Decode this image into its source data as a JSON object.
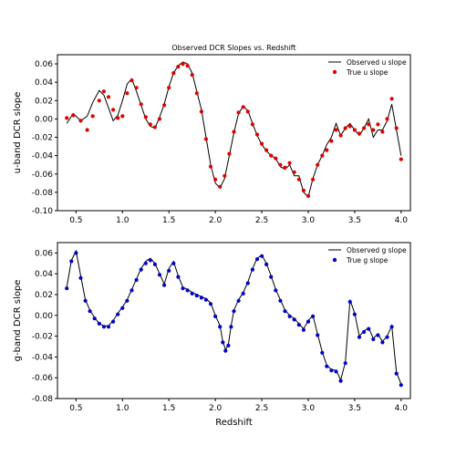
{
  "figure_title": "Observed DCR Slopes vs. Redshift",
  "colors": {
    "u_points": "#e00000",
    "g_points": "#0000cc",
    "line": "#000000"
  },
  "chart_data": [
    {
      "type": "line",
      "title": "Observed DCR Slopes vs. Redshift",
      "xlabel": "",
      "ylabel": "u-band DCR slope",
      "xlim": [
        0.3,
        4.1
      ],
      "ylim": [
        -0.1,
        0.07
      ],
      "xticks": [
        "0.5",
        "1.0",
        "1.5",
        "2.0",
        "2.5",
        "3.0",
        "3.5",
        "4.0"
      ],
      "yticks": [
        "0.06",
        "0.04",
        "0.02",
        "0.00",
        "-0.02",
        "-0.04",
        "-0.06",
        "-0.08",
        "-0.10"
      ],
      "legend": "top-right",
      "series": [
        {
          "name": "Observed u slope",
          "style": "line",
          "x": [
            0.4,
            0.47,
            0.55,
            0.62,
            0.68,
            0.75,
            0.8,
            0.85,
            0.9,
            0.95,
            1.0,
            1.05,
            1.1,
            1.15,
            1.2,
            1.25,
            1.3,
            1.35,
            1.4,
            1.45,
            1.5,
            1.55,
            1.6,
            1.65,
            1.7,
            1.75,
            1.8,
            1.85,
            1.9,
            1.95,
            2.0,
            2.05,
            2.1,
            2.15,
            2.2,
            2.25,
            2.3,
            2.35,
            2.4,
            2.45,
            2.5,
            2.55,
            2.6,
            2.65,
            2.7,
            2.75,
            2.8,
            2.85,
            2.9,
            2.95,
            3.0,
            3.05,
            3.1,
            3.15,
            3.2,
            3.25,
            3.3,
            3.35,
            3.4,
            3.45,
            3.5,
            3.55,
            3.6,
            3.65,
            3.7,
            3.75,
            3.8,
            3.85,
            3.9,
            3.95,
            4.0
          ],
          "y": [
            -0.005,
            0.006,
            -0.002,
            0.003,
            0.018,
            0.031,
            0.026,
            0.012,
            -0.002,
            0.004,
            0.02,
            0.038,
            0.044,
            0.03,
            0.015,
            0.0,
            -0.008,
            -0.01,
            0.002,
            0.016,
            0.035,
            0.05,
            0.058,
            0.062,
            0.06,
            0.05,
            0.03,
            0.01,
            -0.02,
            -0.05,
            -0.07,
            -0.075,
            -0.065,
            -0.04,
            -0.015,
            0.006,
            0.014,
            0.009,
            -0.005,
            -0.018,
            -0.028,
            -0.035,
            -0.04,
            -0.043,
            -0.052,
            -0.055,
            -0.05,
            -0.062,
            -0.062,
            -0.08,
            -0.085,
            -0.065,
            -0.05,
            -0.04,
            -0.028,
            -0.02,
            -0.005,
            -0.018,
            -0.01,
            -0.005,
            -0.012,
            -0.018,
            -0.01,
            0.0,
            -0.02,
            -0.012,
            -0.012,
            -0.002,
            0.016,
            -0.012,
            -0.04
          ]
        },
        {
          "name": "True u slope",
          "style": "points",
          "x": [
            0.4,
            0.47,
            0.55,
            0.62,
            0.68,
            0.75,
            0.8,
            0.85,
            0.9,
            0.95,
            1.0,
            1.05,
            1.1,
            1.15,
            1.2,
            1.25,
            1.3,
            1.35,
            1.4,
            1.45,
            1.5,
            1.55,
            1.6,
            1.65,
            1.7,
            1.75,
            1.8,
            1.85,
            1.9,
            1.95,
            2.0,
            2.05,
            2.1,
            2.15,
            2.2,
            2.25,
            2.3,
            2.35,
            2.4,
            2.45,
            2.5,
            2.55,
            2.6,
            2.65,
            2.7,
            2.75,
            2.8,
            2.85,
            2.9,
            2.95,
            3.0,
            3.05,
            3.1,
            3.15,
            3.2,
            3.25,
            3.3,
            3.35,
            3.4,
            3.45,
            3.5,
            3.55,
            3.6,
            3.65,
            3.7,
            3.75,
            3.8,
            3.85,
            3.9,
            3.95,
            4.0
          ],
          "y": [
            0.001,
            0.004,
            -0.002,
            -0.012,
            0.003,
            0.02,
            0.03,
            0.024,
            0.01,
            0.001,
            0.003,
            0.028,
            0.042,
            0.034,
            0.016,
            0.002,
            -0.006,
            -0.009,
            0.0,
            0.015,
            0.034,
            0.05,
            0.057,
            0.06,
            0.058,
            0.048,
            0.028,
            0.008,
            -0.022,
            -0.052,
            -0.066,
            -0.074,
            -0.062,
            -0.038,
            -0.014,
            0.007,
            0.013,
            0.008,
            -0.006,
            -0.017,
            -0.027,
            -0.034,
            -0.04,
            -0.043,
            -0.05,
            -0.053,
            -0.048,
            -0.058,
            -0.066,
            -0.078,
            -0.084,
            -0.066,
            -0.05,
            -0.04,
            -0.034,
            -0.024,
            -0.012,
            -0.018,
            -0.01,
            -0.008,
            -0.012,
            -0.016,
            -0.01,
            -0.006,
            -0.012,
            -0.006,
            -0.014,
            0.0,
            0.022,
            -0.01,
            -0.044
          ]
        }
      ]
    },
    {
      "type": "line",
      "title": "",
      "xlabel": "Redshift",
      "ylabel": "g-band DCR slope",
      "xlim": [
        0.3,
        4.1
      ],
      "ylim": [
        -0.08,
        0.07
      ],
      "xticks": [
        "0.5",
        "1.0",
        "1.5",
        "2.0",
        "2.5",
        "3.0",
        "3.5",
        "4.0"
      ],
      "yticks": [
        "0.06",
        "0.04",
        "0.02",
        "0.00",
        "-0.02",
        "-0.04",
        "-0.06",
        "-0.08"
      ],
      "legend": "top-right",
      "series": [
        {
          "name": "Observed g slope",
          "style": "line",
          "x": [
            0.4,
            0.45,
            0.5,
            0.55,
            0.6,
            0.65,
            0.7,
            0.75,
            0.8,
            0.85,
            0.9,
            0.95,
            1.0,
            1.05,
            1.1,
            1.15,
            1.2,
            1.25,
            1.3,
            1.35,
            1.4,
            1.45,
            1.5,
            1.55,
            1.6,
            1.65,
            1.7,
            1.75,
            1.8,
            1.85,
            1.9,
            1.95,
            2.0,
            2.05,
            2.08,
            2.11,
            2.14,
            2.17,
            2.2,
            2.25,
            2.3,
            2.35,
            2.4,
            2.45,
            2.5,
            2.55,
            2.6,
            2.65,
            2.7,
            2.75,
            2.8,
            2.85,
            2.9,
            2.95,
            3.0,
            3.05,
            3.1,
            3.15,
            3.2,
            3.25,
            3.3,
            3.35,
            3.4,
            3.45,
            3.5,
            3.55,
            3.6,
            3.65,
            3.7,
            3.75,
            3.8,
            3.85,
            3.9,
            3.95,
            4.0
          ],
          "y": [
            0.027,
            0.053,
            0.062,
            0.038,
            0.015,
            0.005,
            -0.002,
            -0.008,
            -0.01,
            -0.01,
            -0.005,
            0.002,
            0.008,
            0.015,
            0.025,
            0.035,
            0.045,
            0.052,
            0.055,
            0.05,
            0.04,
            0.03,
            0.045,
            0.052,
            0.038,
            0.027,
            0.025,
            0.022,
            0.02,
            0.018,
            0.016,
            0.012,
            0.0,
            -0.01,
            -0.025,
            -0.033,
            -0.028,
            -0.01,
            0.005,
            0.015,
            0.022,
            0.032,
            0.045,
            0.055,
            0.058,
            0.05,
            0.038,
            0.025,
            0.015,
            0.005,
            0.0,
            -0.003,
            -0.008,
            -0.013,
            -0.005,
            0.0,
            -0.018,
            -0.035,
            -0.048,
            -0.052,
            -0.053,
            -0.062,
            -0.045,
            0.015,
            0.002,
            -0.02,
            -0.015,
            -0.012,
            -0.022,
            -0.018,
            -0.025,
            -0.02,
            -0.01,
            -0.055,
            -0.066
          ]
        },
        {
          "name": "True g slope",
          "style": "points",
          "x": [
            0.4,
            0.45,
            0.5,
            0.55,
            0.6,
            0.65,
            0.7,
            0.75,
            0.8,
            0.85,
            0.9,
            0.95,
            1.0,
            1.05,
            1.1,
            1.15,
            1.2,
            1.25,
            1.3,
            1.35,
            1.4,
            1.45,
            1.5,
            1.55,
            1.6,
            1.65,
            1.7,
            1.75,
            1.8,
            1.85,
            1.9,
            1.95,
            2.0,
            2.05,
            2.08,
            2.11,
            2.14,
            2.17,
            2.2,
            2.25,
            2.3,
            2.35,
            2.4,
            2.45,
            2.5,
            2.55,
            2.6,
            2.65,
            2.7,
            2.75,
            2.8,
            2.85,
            2.9,
            2.95,
            3.0,
            3.05,
            3.1,
            3.15,
            3.2,
            3.25,
            3.3,
            3.35,
            3.4,
            3.45,
            3.5,
            3.55,
            3.6,
            3.65,
            3.7,
            3.75,
            3.8,
            3.85,
            3.9,
            3.95,
            4.0
          ],
          "y": [
            0.026,
            0.052,
            0.06,
            0.036,
            0.014,
            0.004,
            -0.003,
            -0.008,
            -0.011,
            -0.011,
            -0.006,
            0.001,
            0.007,
            0.014,
            0.024,
            0.034,
            0.044,
            0.05,
            0.053,
            0.049,
            0.039,
            0.029,
            0.043,
            0.05,
            0.037,
            0.026,
            0.024,
            0.021,
            0.019,
            0.017,
            0.015,
            0.011,
            -0.001,
            -0.011,
            -0.026,
            -0.034,
            -0.029,
            -0.011,
            0.004,
            0.014,
            0.021,
            0.031,
            0.044,
            0.054,
            0.057,
            0.049,
            0.037,
            0.024,
            0.014,
            0.004,
            -0.001,
            -0.004,
            -0.009,
            -0.014,
            -0.006,
            -0.001,
            -0.019,
            -0.036,
            -0.049,
            -0.053,
            -0.054,
            -0.063,
            -0.046,
            0.013,
            0.001,
            -0.021,
            -0.016,
            -0.013,
            -0.023,
            -0.019,
            -0.026,
            -0.021,
            -0.011,
            -0.056,
            -0.067
          ]
        }
      ]
    }
  ]
}
